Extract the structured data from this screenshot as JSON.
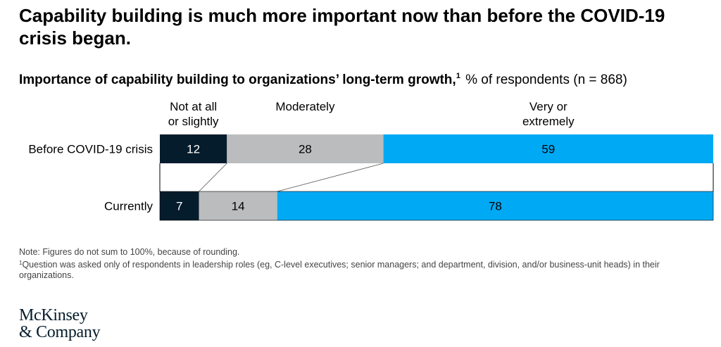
{
  "title": "Capability building is much more important now than before the COVID-19 crisis began.",
  "subtitle": {
    "bold": "Importance of capability building to organizations’ long-term growth,",
    "footnote_mark": "1",
    "rest": " % of respondents (n = 868)"
  },
  "chart_data": {
    "type": "bar",
    "orientation": "horizontal",
    "stacked": true,
    "categories": [
      "Before COVID-19 crisis",
      "Currently"
    ],
    "series": [
      {
        "name": "Not at all or slightly",
        "name_lines": [
          "Not at all",
          "or slightly"
        ],
        "values": [
          12,
          7
        ],
        "color": "#051c2c",
        "label_color": "#ffffff"
      },
      {
        "name": "Moderately",
        "name_lines": [
          "Moderately"
        ],
        "values": [
          28,
          14
        ],
        "color": "#babcbe",
        "label_color": "#000000"
      },
      {
        "name": "Very or extremely",
        "name_lines": [
          "Very or",
          "extremely"
        ],
        "values": [
          59,
          78
        ],
        "color": "#00a9f4",
        "label_color": "#000000"
      }
    ],
    "legend_position": "top",
    "connector_lines": true
  },
  "notes": {
    "note": "Note: Figures do not sum to 100%, because of rounding.",
    "footnote_mark": "1",
    "footnote": "Question was asked only of respondents in leadership roles (eg, C-level executives; senior managers; and department, division, and/or business-unit heads) in their organizations."
  },
  "logo": {
    "line1": "McKinsey",
    "line2": "& Company"
  }
}
